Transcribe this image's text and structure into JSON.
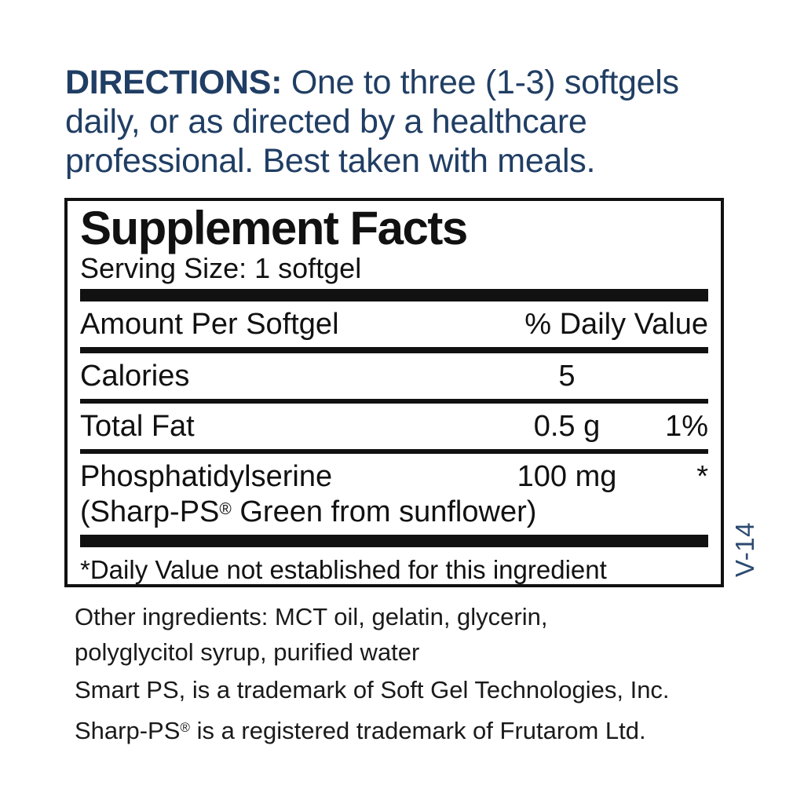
{
  "colors": {
    "navy": "#203e64",
    "code_blue": "#2b4a70",
    "ink": "#111111"
  },
  "directions": {
    "label": "DIRECTIONS:",
    "line1_rest": " One to three (1-3) softgels",
    "line2": "daily, or as directed by a healthcare",
    "line3": "professional. Best taken with meals."
  },
  "supplement_facts": {
    "title": "Supplement Facts",
    "serving_size": "Serving Size: 1 softgel",
    "column_headers": {
      "amount": "Amount Per Softgel",
      "daily_value": "% Daily Value"
    },
    "rows": [
      {
        "name": "Calories",
        "amount": "5",
        "daily_value": ""
      },
      {
        "name": "Total Fat",
        "amount": "0.5 g",
        "daily_value": "1%"
      },
      {
        "name": "Phosphatidylserine",
        "detail": "(Sharp-PS® Green from sunflower)",
        "amount": "100 mg",
        "daily_value": "*"
      }
    ],
    "footnote": "*Daily Value not established for this ingredient"
  },
  "vertical_code": "V-14",
  "other_ingredients": {
    "line1": "Other ingredients: MCT oil, gelatin, glycerin,",
    "line2": "polyglycitol syrup, purified water"
  },
  "trademark_notes": [
    "Smart PS, is a trademark of Soft Gel Technologies, Inc.",
    "Sharp-PS® is a registered trademark of Frutarom Ltd."
  ]
}
